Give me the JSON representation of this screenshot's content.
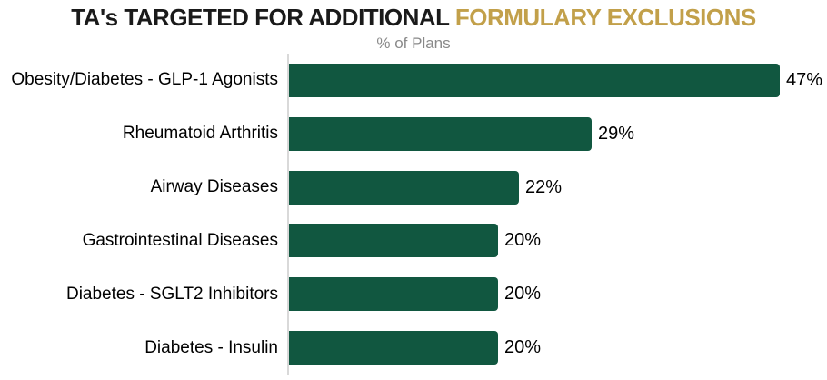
{
  "title": {
    "part1": "TA's TARGETED FOR ADDITIONAL",
    "part2": "FORMULARY EXCLUSIONS"
  },
  "subtitle": "% of Plans",
  "colors": {
    "bar_green": "#115740",
    "title_accent_gold": "#C2A04A",
    "title_black": "#1a1a1a",
    "subtitle_gray": "#898989",
    "axis_gray": "#D9D9D9"
  },
  "chart_data": {
    "type": "bar",
    "orientation": "horizontal",
    "title": "TA's TARGETED FOR ADDITIONAL FORMULARY EXCLUSIONS",
    "subtitle": "% of Plans",
    "categories": [
      "Obesity/Diabetes - GLP-1 Agonists",
      "Rheumatoid Arthritis",
      "Airway Diseases",
      "Gastrointestinal Diseases",
      "Diabetes - SGLT2 Inhibitors",
      "Diabetes - Insulin"
    ],
    "values": [
      47,
      29,
      22,
      20,
      20,
      20
    ],
    "value_labels": [
      "47%",
      "29%",
      "22%",
      "20%",
      "20%",
      "20%"
    ],
    "xlabel": "",
    "ylabel": "",
    "xlim": [
      0,
      50
    ],
    "grid": false,
    "legend": false,
    "data_labels_position": "end-of-bar"
  }
}
